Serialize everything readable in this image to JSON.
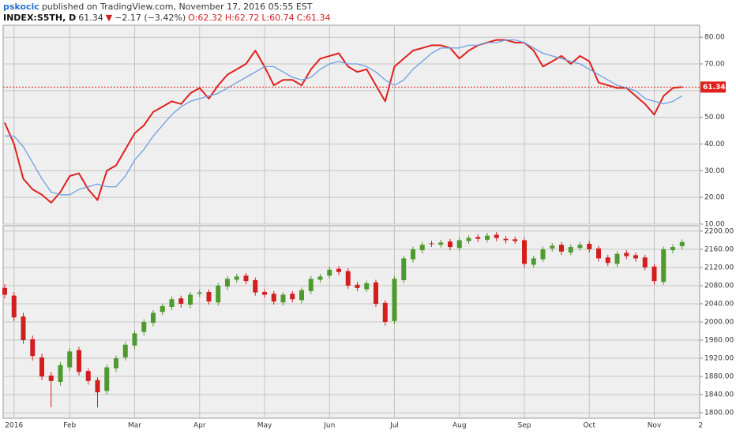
{
  "header": {
    "author": "pskocic",
    "published": "published on TradingView.com, November 17, 2016 05:55 EST",
    "symbol": "INDEX:S5TH, D",
    "last": "61.34",
    "arrow": "▼",
    "change": "−2.17 (−3.42%)",
    "open": "O:62.32",
    "high": "H:62.72",
    "low": "L:60.74",
    "close": "C:61.34"
  },
  "chart_data": [
    {
      "type": "line",
      "grid": true,
      "ylim": [
        10,
        84.5
      ],
      "yticks": [
        {
          "value": 10,
          "label": "10.00"
        },
        {
          "value": 20,
          "label": "20.00"
        },
        {
          "value": 30,
          "label": "30.00"
        },
        {
          "value": 40,
          "label": "40.00"
        },
        {
          "value": 50,
          "label": "50.00"
        },
        {
          "value": 60,
          "label": "60.00"
        },
        {
          "value": 70,
          "label": "70.00"
        },
        {
          "value": 80,
          "label": "80.00"
        }
      ],
      "price_line": 61.34,
      "price_line_color": "#e0201c",
      "series": [
        {
          "color": "#e0201c",
          "values": [
            48,
            40,
            27,
            23,
            21,
            18,
            22,
            28,
            29,
            23,
            19,
            30,
            32,
            38,
            44,
            47,
            52,
            54,
            56,
            55,
            59,
            61,
            57,
            62,
            66,
            68,
            70,
            75,
            69,
            62,
            64,
            64,
            62,
            68,
            72,
            73,
            74,
            69,
            67,
            68,
            62,
            56,
            69,
            72,
            75,
            76,
            77,
            77,
            76,
            72,
            75,
            77,
            78,
            79,
            79,
            78,
            78,
            75,
            69,
            71,
            73,
            70,
            73,
            71,
            63,
            62,
            61,
            61,
            58,
            55,
            51,
            58,
            61,
            61.34,
            null,
            null
          ]
        },
        {
          "color": "#6fa0e0",
          "values": [
            43,
            43,
            39,
            33,
            27,
            22,
            21,
            21,
            23,
            24,
            25,
            24,
            24,
            28,
            34,
            38,
            43,
            47,
            51,
            54,
            56,
            57,
            58,
            59,
            61,
            63,
            65,
            67,
            69,
            69,
            67,
            65,
            64,
            65,
            68,
            70,
            71,
            70,
            70,
            69,
            67,
            64,
            62,
            64,
            68,
            71,
            74,
            76,
            76,
            76,
            77,
            77,
            78,
            78,
            79,
            79,
            78,
            76,
            74,
            73,
            72,
            71,
            70,
            68,
            66,
            64,
            62,
            61,
            60,
            57,
            56,
            55,
            56,
            58,
            null,
            null
          ]
        }
      ]
    },
    {
      "type": "candlestick",
      "grid": true,
      "ylim": [
        1788,
        2212
      ],
      "up_color": "#4e9a2f",
      "down_color": "#d21e1e",
      "yticks": [
        {
          "value": 1800,
          "label": "1800.00"
        },
        {
          "value": 1840,
          "label": "1840.00"
        },
        {
          "value": 1880,
          "label": "1880.00"
        },
        {
          "value": 1920,
          "label": "1920.00"
        },
        {
          "value": 1960,
          "label": "1960.00"
        },
        {
          "value": 2000,
          "label": "2000.00"
        },
        {
          "value": 2040,
          "label": "2040.00"
        },
        {
          "value": 2080,
          "label": "2080.00"
        },
        {
          "value": 2120,
          "label": "2120.00"
        },
        {
          "value": 2160,
          "label": "2160.00"
        },
        {
          "value": 2200,
          "label": "2200.00"
        }
      ],
      "categories": [
        null,
        "2016",
        null,
        null,
        null,
        null,
        null,
        "Feb",
        null,
        null,
        null,
        null,
        null,
        null,
        "Mar",
        null,
        null,
        null,
        null,
        null,
        null,
        "Apr",
        null,
        null,
        null,
        null,
        null,
        null,
        "May",
        null,
        null,
        null,
        null,
        null,
        null,
        "Jun",
        null,
        null,
        null,
        null,
        null,
        null,
        "Jul",
        null,
        null,
        null,
        null,
        null,
        null,
        "Aug",
        null,
        null,
        null,
        null,
        null,
        null,
        "Sep",
        null,
        null,
        null,
        null,
        null,
        null,
        "Oct",
        null,
        null,
        null,
        null,
        null,
        null,
        "Nov",
        null,
        null,
        null,
        null,
        "2"
      ],
      "open": [
        2075,
        2058,
        2012,
        1962,
        1922,
        1882,
        1868,
        1900,
        1938,
        1892,
        1872,
        1848,
        1898,
        1922,
        1948,
        1978,
        1998,
        2022,
        2033,
        2052,
        2038,
        2062,
        2066,
        2043,
        2078,
        2093,
        2102,
        2092,
        2066,
        2062,
        2043,
        2062,
        2048,
        2068,
        2093,
        2102,
        2117,
        2112,
        2082,
        2072,
        2087,
        2042,
        2002,
        2092,
        2138,
        2158,
        2173,
        2170,
        2177,
        2163,
        2178,
        2187,
        2181,
        2192,
        2183,
        2182,
        2180,
        2126,
        2138,
        2162,
        2170,
        2153,
        2163,
        2172,
        2162,
        2142,
        2128,
        2152,
        2147,
        2142,
        2122,
        2088,
        2158,
        2167,
        null,
        null
      ],
      "high": [
        2083,
        2066,
        2020,
        1970,
        1930,
        1890,
        1912,
        1942,
        1945,
        1898,
        1878,
        1906,
        1926,
        1956,
        1981,
        2006,
        2026,
        2041,
        2056,
        2058,
        2066,
        2071,
        2072,
        2086,
        2101,
        2106,
        2108,
        2098,
        2072,
        2068,
        2066,
        2068,
        2076,
        2101,
        2106,
        2121,
        2123,
        2118,
        2088,
        2091,
        2093,
        2048,
        2101,
        2146,
        2166,
        2176,
        2179,
        2181,
        2183,
        2186,
        2191,
        2193,
        2196,
        2198,
        2189,
        2188,
        2186,
        2146,
        2166,
        2174,
        2176,
        2171,
        2176,
        2178,
        2168,
        2148,
        2156,
        2158,
        2153,
        2148,
        2128,
        2166,
        2171,
        2182,
        null,
        null
      ],
      "low": [
        2052,
        2002,
        1952,
        1915,
        1872,
        1812,
        1860,
        1892,
        1882,
        1862,
        1812,
        1840,
        1890,
        1915,
        1940,
        1970,
        1990,
        2015,
        2026,
        2032,
        2030,
        2055,
        2038,
        2036,
        2070,
        2086,
        2083,
        2058,
        2053,
        2038,
        2036,
        2043,
        2041,
        2061,
        2086,
        2096,
        2103,
        2073,
        2068,
        2066,
        2033,
        1992,
        1995,
        2085,
        2131,
        2151,
        2165,
        2164,
        2158,
        2157,
        2172,
        2176,
        2175,
        2178,
        2173,
        2172,
        2120,
        2120,
        2132,
        2155,
        2148,
        2147,
        2157,
        2153,
        2133,
        2123,
        2121,
        2138,
        2133,
        2114,
        2082,
        2082,
        2151,
        2160,
        null,
        null
      ],
      "close": [
        2060,
        2010,
        1960,
        1925,
        1880,
        1870,
        1905,
        1935,
        1890,
        1870,
        1845,
        1900,
        1920,
        1950,
        1975,
        2000,
        2020,
        2035,
        2050,
        2040,
        2060,
        2065,
        2045,
        2080,
        2095,
        2100,
        2090,
        2065,
        2060,
        2045,
        2060,
        2050,
        2070,
        2095,
        2100,
        2115,
        2110,
        2080,
        2075,
        2085,
        2040,
        2000,
        2095,
        2140,
        2160,
        2170,
        2172,
        2175,
        2165,
        2180,
        2185,
        2183,
        2190,
        2185,
        2180,
        2178,
        2128,
        2140,
        2160,
        2168,
        2155,
        2165,
        2170,
        2160,
        2140,
        2130,
        2150,
        2145,
        2140,
        2120,
        2090,
        2160,
        2165,
        2176,
        null,
        null
      ]
    }
  ]
}
